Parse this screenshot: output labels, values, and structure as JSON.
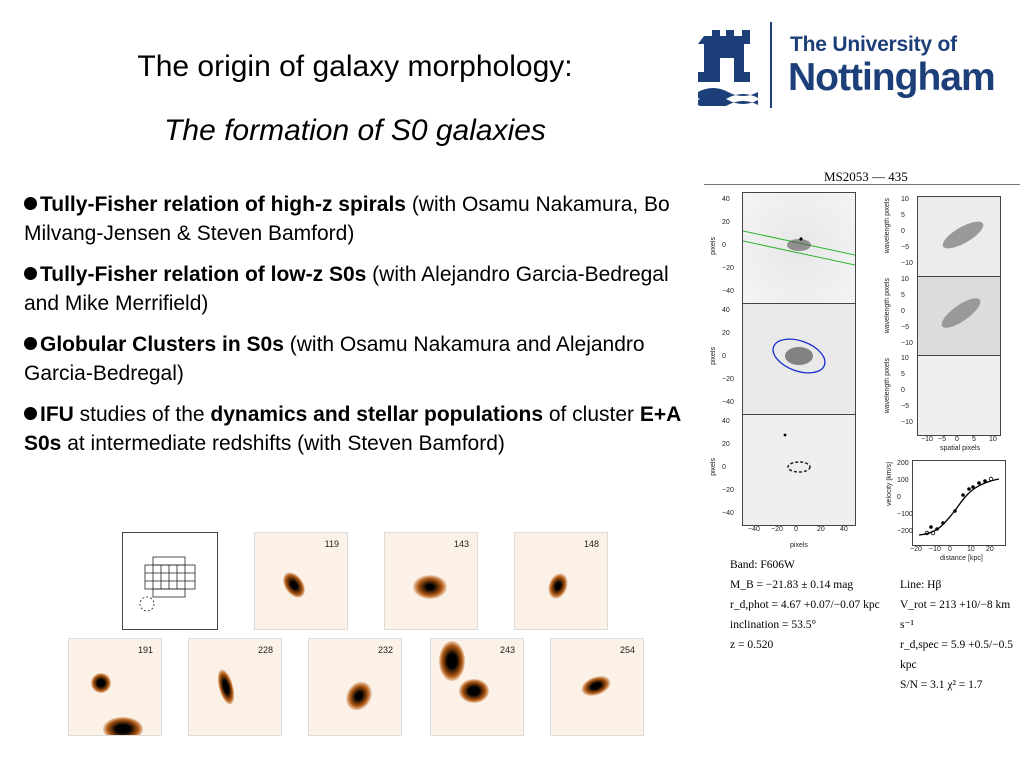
{
  "slide": {
    "title": "The origin of galaxy morphology:",
    "subtitle": "The formation of S0 galaxies"
  },
  "logo": {
    "line1": "The University of",
    "line2": "Nottingham",
    "color": "#1c3f7a"
  },
  "bullets": [
    {
      "bold": "Tully-Fisher relation of high-z spirals",
      "rest": " (with Osamu Nakamura, Bo Milvang-Jensen & Steven Bamford)"
    },
    {
      "bold": "Tully-Fisher relation of low-z S0s",
      "rest": " (with Alejandro Garcia-Bedregal and Mike Merrifield)"
    },
    {
      "bold": "Globular Clusters in S0s",
      "rest": " (with Osamu Nakamura and Alejandro Garcia-Bedregal)"
    },
    {
      "b1": "IFU",
      "t1": " studies of the ",
      "b2": "dynamics and stellar populations",
      "t2": " of cluster ",
      "b3": "E+A S0s",
      "t3": " at intermediate redshifts (with Steven Bamford)"
    }
  ],
  "thumbnails": [
    "119",
    "143",
    "148",
    "191",
    "228",
    "232",
    "243",
    "254"
  ],
  "figure": {
    "title": "MS2053 — 435",
    "image_axis_ticks": [
      "40",
      "20",
      "0",
      "−20",
      "−40"
    ],
    "image_x_ticks": [
      "−40",
      "−20",
      "0",
      "20",
      "40"
    ],
    "image_ylabel": "pixels",
    "image_xlabel": "pixels",
    "spec_ylabel": "wavelength pixels",
    "spec_y_ticks": [
      "10",
      "5",
      "0",
      "−5",
      "−10"
    ],
    "spec_x_ticks": [
      "−10",
      "−5",
      "0",
      "5",
      "10"
    ],
    "spec_xlabel": "spatial pixels",
    "rc_ylabel": "velocity [km/s]",
    "rc_xlabel": "distance [kpc]",
    "rc_y_ticks": [
      "200",
      "100",
      "0",
      "−100",
      "−200"
    ],
    "rc_x_ticks": [
      "−20",
      "−10",
      "0",
      "10",
      "20"
    ],
    "left_params": {
      "band": "Band: F606W",
      "mb": "M_B = −21.83 ± 0.14 mag",
      "rphot": "r_d,phot = 4.67 +0.07/−0.07 kpc",
      "incl": "inclination = 53.5°",
      "z": "z = 0.520"
    },
    "right_params": {
      "line": "Line: Hβ",
      "vrot": "V_rot = 213 +10/−8 km s⁻¹",
      "rspec": "r_d,spec = 5.9 +0.5/−0.5 kpc",
      "sn": "S/N = 3.1   χ² = 1.7"
    }
  }
}
